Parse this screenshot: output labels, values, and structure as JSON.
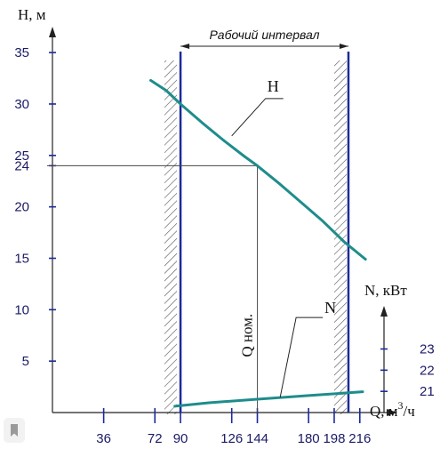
{
  "chart_data": {
    "type": "line",
    "xlabel": "Q, м³/ч",
    "xlabel_base": "Q, м",
    "xlabel_sup": "3",
    "xlabel_unit": "/ч",
    "ylabel": "H, м",
    "y2label": "N, кВт",
    "xticks": [
      36,
      72,
      90,
      126,
      144,
      180,
      198,
      216
    ],
    "yticks": [
      5,
      10,
      15,
      20,
      24,
      25,
      30,
      35
    ],
    "y2ticks": [
      21,
      22,
      23
    ],
    "xlim": [
      0,
      233
    ],
    "ylim": [
      0,
      37
    ],
    "y2lim": [
      20,
      24.7
    ],
    "series": [
      {
        "name": "H",
        "axis": "left",
        "color": "#1f8c8c",
        "x": [
          69,
          80,
          90,
          105,
          120,
          135,
          144,
          160,
          175,
          190,
          205,
          220
        ],
        "y": [
          32.3,
          31.3,
          30.0,
          28.2,
          26.5,
          24.9,
          24.0,
          22.2,
          20.4,
          18.6,
          16.6,
          14.9
        ]
      },
      {
        "name": "N",
        "axis": "right",
        "color": "#1f8c8c",
        "x": [
          86,
          110,
          144,
          180,
          208,
          218
        ],
        "y": [
          20.3,
          20.46,
          20.63,
          20.8,
          20.93,
          20.98
        ]
      }
    ],
    "working_interval": {
      "label": "Рабочий интервал",
      "x_from": 90,
      "x_to": 208
    },
    "nominal": {
      "label": "Q ном.",
      "q": 144,
      "h": 24
    }
  }
}
